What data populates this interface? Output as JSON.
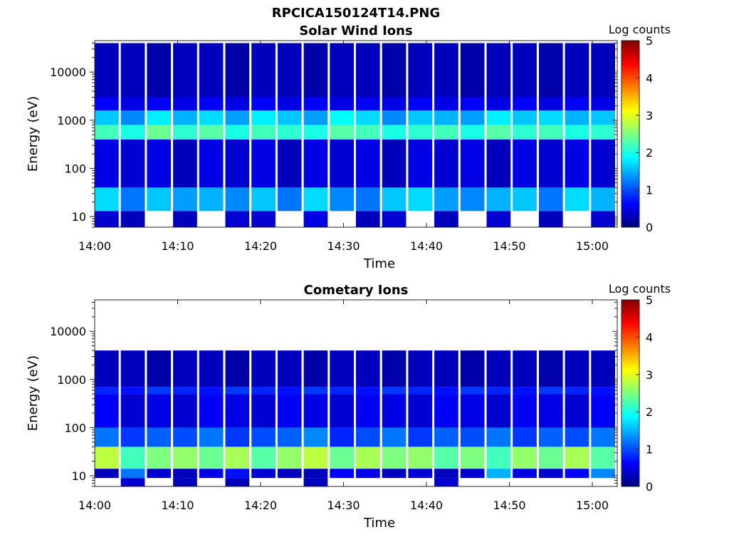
{
  "figure": {
    "title": "RPCICA150124T14.PNG"
  },
  "colormap": {
    "name": "jet",
    "stops": [
      "#00007f",
      "#0000ff",
      "#007fff",
      "#00ffff",
      "#7fff7f",
      "#ffff00",
      "#ff7f00",
      "#ff0000",
      "#7f0000"
    ]
  },
  "chart_data": [
    {
      "type": "heatmap",
      "title": "Solar Wind Ions",
      "xlabel": "Time",
      "ylabel": "Energy (eV)",
      "x_ticks": [
        "14:00",
        "14:10",
        "14:20",
        "14:30",
        "14:40",
        "14:50",
        "15:00"
      ],
      "x_range_minutes": [
        0,
        63
      ],
      "y_scale": "log",
      "y_range": [
        6,
        45000
      ],
      "y_ticks": [
        10,
        100,
        1000,
        10000
      ],
      "y_tick_labels": [
        "10",
        "100",
        "1000",
        "10000"
      ],
      "colorbar": {
        "label": "Log counts",
        "range": [
          0,
          5
        ],
        "ticks": [
          "0",
          "1",
          "2",
          "3",
          "4",
          "5"
        ]
      },
      "time_bins": 20,
      "energy_bands": [
        {
          "e_low": 6,
          "e_high": 13,
          "log_counts_per_time_bin": [
            0.4,
            0.3,
            0.0,
            0.3,
            0.0,
            0.4,
            0.4,
            0.0,
            0.5,
            0.0,
            0.3,
            0.4,
            0.0,
            0.3,
            0.0,
            0.4,
            0.0,
            0.3,
            0.0,
            0.4
          ]
        },
        {
          "e_low": 13,
          "e_high": 40,
          "log_counts_per_time_bin": [
            1.7,
            1.2,
            1.6,
            1.4,
            1.5,
            1.3,
            1.6,
            1.2,
            1.7,
            1.3,
            1.2,
            1.6,
            1.7,
            1.4,
            1.3,
            1.5,
            1.6,
            1.2,
            1.7,
            1.5
          ]
        },
        {
          "e_low": 40,
          "e_high": 400,
          "log_counts_per_time_bin": [
            0.5,
            0.4,
            0.5,
            0.3,
            0.5,
            0.4,
            0.5,
            0.3,
            0.5,
            0.4,
            0.5,
            0.3,
            0.5,
            0.4,
            0.5,
            0.3,
            0.5,
            0.4,
            0.5,
            0.4
          ]
        },
        {
          "e_low": 400,
          "e_high": 800,
          "log_counts_per_time_bin": [
            2.2,
            2.0,
            2.4,
            2.1,
            2.3,
            2.0,
            2.2,
            2.1,
            2.0,
            2.3,
            2.2,
            2.0,
            2.1,
            2.2,
            2.0,
            2.3,
            2.1,
            2.2,
            2.0,
            2.1
          ]
        },
        {
          "e_low": 800,
          "e_high": 1600,
          "log_counts_per_time_bin": [
            1.6,
            1.3,
            1.8,
            1.5,
            1.7,
            1.4,
            1.8,
            1.6,
            1.4,
            1.9,
            1.7,
            1.3,
            1.6,
            1.5,
            1.4,
            1.8,
            1.6,
            1.7,
            1.5,
            1.6
          ]
        },
        {
          "e_low": 1600,
          "e_high": 3000,
          "log_counts_per_time_bin": [
            0.6,
            0.5,
            0.6,
            0.5,
            0.6,
            0.5,
            0.6,
            0.5,
            0.6,
            0.5,
            0.6,
            0.5,
            0.6,
            0.5,
            0.6,
            0.5,
            0.6,
            0.5,
            0.6,
            0.5
          ]
        },
        {
          "e_low": 3000,
          "e_high": 40000,
          "log_counts_per_time_bin": [
            0.3,
            0.3,
            0.2,
            0.3,
            0.3,
            0.2,
            0.3,
            0.3,
            0.2,
            0.3,
            0.3,
            0.2,
            0.3,
            0.3,
            0.2,
            0.3,
            0.3,
            0.2,
            0.3,
            0.3
          ]
        }
      ]
    },
    {
      "type": "heatmap",
      "title": "Cometary Ions",
      "xlabel": "Time",
      "ylabel": "Energy (eV)",
      "x_ticks": [
        "14:00",
        "14:10",
        "14:20",
        "14:30",
        "14:40",
        "14:50",
        "15:00"
      ],
      "x_range_minutes": [
        0,
        63
      ],
      "y_scale": "log",
      "y_range": [
        6,
        45000
      ],
      "y_ticks": [
        10,
        100,
        1000,
        10000
      ],
      "y_tick_labels": [
        "10",
        "100",
        "1000",
        "10000"
      ],
      "colorbar": {
        "label": "Log counts",
        "range": [
          0,
          5
        ],
        "ticks": [
          "0",
          "1",
          "2",
          "3",
          "4",
          "5"
        ]
      },
      "time_bins": 20,
      "energy_bands": [
        {
          "e_low": 6,
          "e_high": 9,
          "log_counts_per_time_bin": [
            0.0,
            0.4,
            0.0,
            0.3,
            0.0,
            0.3,
            0.0,
            0.0,
            0.3,
            0.0,
            0.0,
            0.0,
            0.0,
            0.4,
            0.0,
            0.0,
            0.0,
            0.0,
            0.0,
            0.0
          ]
        },
        {
          "e_low": 9,
          "e_high": 14,
          "log_counts_per_time_bin": [
            0.3,
            1.2,
            0.4,
            0.3,
            0.5,
            0.7,
            0.4,
            0.3,
            0.3,
            0.6,
            0.5,
            0.3,
            0.4,
            0.3,
            0.4,
            1.5,
            0.5,
            0.4,
            0.6,
            1.3
          ]
        },
        {
          "e_low": 14,
          "e_high": 40,
          "log_counts_per_time_bin": [
            2.8,
            2.2,
            2.5,
            2.6,
            2.4,
            2.7,
            2.3,
            2.6,
            2.8,
            2.4,
            2.7,
            2.5,
            2.6,
            2.3,
            2.5,
            2.2,
            2.6,
            2.4,
            2.7,
            2.3
          ]
        },
        {
          "e_low": 40,
          "e_high": 100,
          "log_counts_per_time_bin": [
            1.2,
            0.9,
            1.1,
            1.0,
            1.2,
            0.9,
            1.0,
            1.1,
            1.3,
            0.8,
            1.0,
            1.2,
            0.9,
            1.1,
            1.0,
            1.2,
            0.9,
            1.1,
            1.0,
            1.2
          ]
        },
        {
          "e_low": 100,
          "e_high": 500,
          "log_counts_per_time_bin": [
            0.6,
            0.4,
            0.5,
            0.4,
            0.6,
            0.5,
            0.4,
            0.6,
            0.5,
            0.4,
            0.6,
            0.5,
            0.4,
            0.6,
            0.5,
            0.4,
            0.6,
            0.5,
            0.4,
            0.6
          ]
        },
        {
          "e_low": 500,
          "e_high": 700,
          "log_counts_per_time_bin": [
            0.8,
            0.7,
            0.9,
            0.8,
            0.7,
            0.9,
            0.8,
            0.7,
            0.9,
            0.8,
            0.7,
            0.9,
            0.8,
            0.7,
            0.9,
            0.8,
            0.7,
            0.9,
            0.8,
            0.7
          ]
        },
        {
          "e_low": 700,
          "e_high": 4000,
          "log_counts_per_time_bin": [
            0.3,
            0.3,
            0.2,
            0.3,
            0.3,
            0.2,
            0.3,
            0.3,
            0.2,
            0.3,
            0.3,
            0.2,
            0.3,
            0.3,
            0.2,
            0.3,
            0.3,
            0.2,
            0.3,
            0.3
          ]
        }
      ]
    }
  ]
}
